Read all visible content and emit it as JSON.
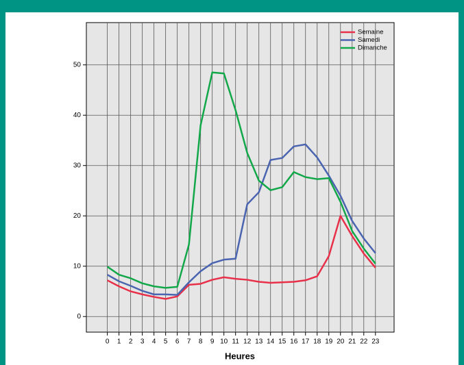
{
  "chart_data": {
    "type": "line",
    "x_label": "Heures",
    "x": [
      0,
      1,
      2,
      3,
      4,
      5,
      6,
      7,
      8,
      9,
      10,
      11,
      12,
      13,
      14,
      15,
      16,
      17,
      18,
      19,
      20,
      21,
      22,
      23
    ],
    "xlim": [
      -1.8,
      24.6
    ],
    "xticks": [
      0,
      1,
      2,
      3,
      4,
      5,
      6,
      7,
      8,
      9,
      10,
      11,
      12,
      13,
      14,
      15,
      16,
      17,
      18,
      19,
      20,
      21,
      22,
      23
    ],
    "ylim": [
      -3.1,
      58.4
    ],
    "yticks": [
      0,
      10,
      20,
      30,
      40,
      50
    ],
    "grid": true,
    "legend": "top-right",
    "series": [
      {
        "name": "Semaine",
        "color": "#e8304a",
        "values": [
          7.2,
          6,
          5,
          4.4,
          3.9,
          3.5,
          4,
          6.3,
          6.5,
          7.3,
          7.8,
          7.5,
          7.3,
          6.9,
          6.7,
          6.8,
          6.9,
          7.2,
          8,
          12,
          20,
          16,
          12.5,
          9.7
        ]
      },
      {
        "name": "Samedi",
        "color": "#4a64b0",
        "values": [
          8.3,
          7,
          6.1,
          5.1,
          4.4,
          4.4,
          4.3,
          6.8,
          9,
          10.6,
          11.3,
          11.5,
          22.3,
          24.7,
          31.1,
          31.5,
          33.8,
          34.2,
          31.6,
          28,
          24,
          19,
          15.5,
          12.6
        ]
      },
      {
        "name": "Dimanche",
        "color": "#12a84a",
        "values": [
          9.9,
          8.3,
          7.6,
          6.6,
          6,
          5.7,
          5.9,
          14.3,
          38,
          48.5,
          48.3,
          41,
          32.5,
          27,
          25.1,
          25.7,
          28.7,
          27.7,
          27.3,
          27.5,
          22.8,
          17,
          13.5,
          10.5
        ]
      }
    ]
  }
}
